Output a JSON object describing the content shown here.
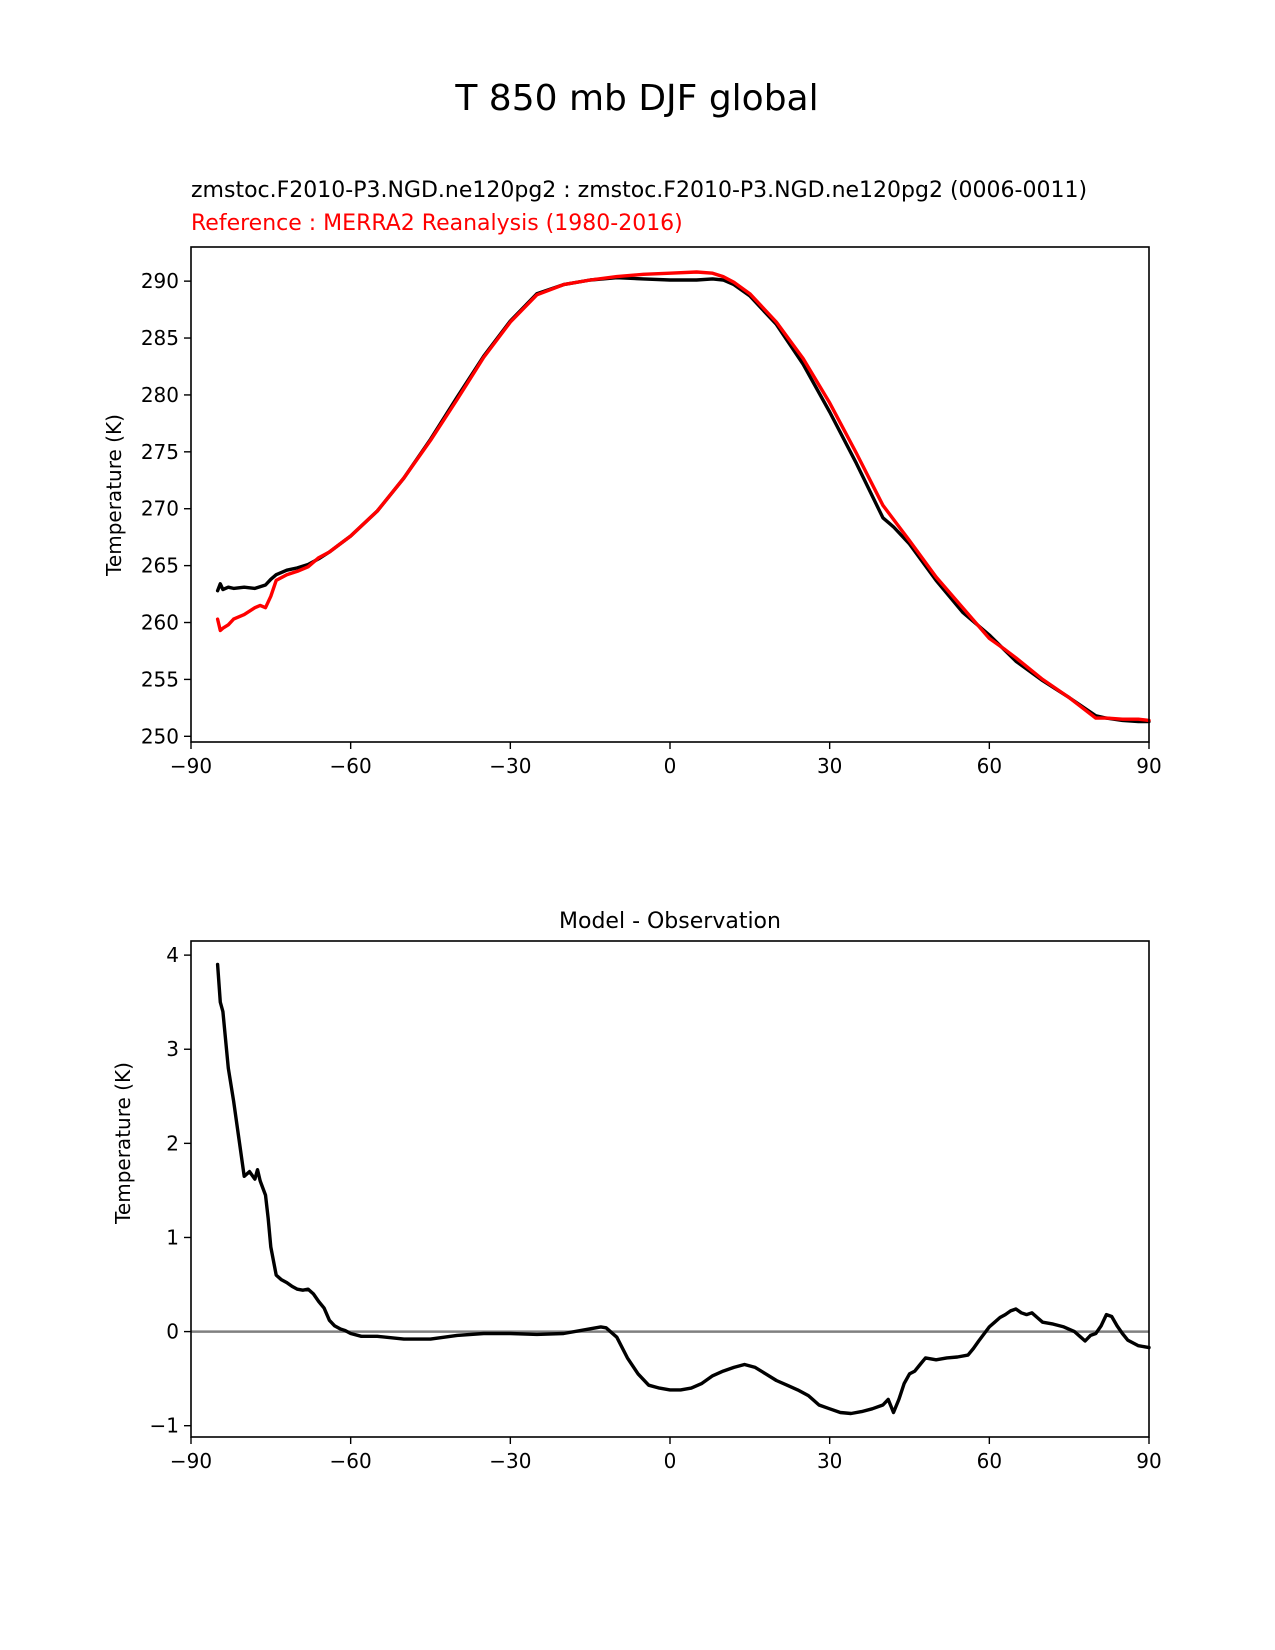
{
  "figure_title": "T 850 mb DJF global",
  "colors": {
    "model": "#000000",
    "reference": "#ff0000",
    "zero_line": "#808080"
  },
  "chart_data": [
    {
      "type": "line",
      "subtitle_model": "zmstoc.F2010-P3.NGD.ne120pg2 : zmstoc.F2010-P3.NGD.ne120pg2 (0006-0011)",
      "subtitle_reference": "Reference : MERRA2 Reanalysis (1980-2016)",
      "ylabel": "Temperature (K)",
      "xlabel": "",
      "xlim": [
        -90,
        90
      ],
      "ylim": [
        249.5,
        293
      ],
      "xticks": [
        -90,
        -60,
        -30,
        0,
        30,
        60,
        90
      ],
      "xtick_labels": [
        "−90",
        "−60",
        "−30",
        "0",
        "30",
        "60",
        "90"
      ],
      "yticks": [
        250,
        255,
        260,
        265,
        270,
        275,
        280,
        285,
        290
      ],
      "ytick_labels": [
        "250",
        "255",
        "260",
        "265",
        "270",
        "275",
        "280",
        "285",
        "290"
      ],
      "series": [
        {
          "name": "model",
          "x": [
            -85,
            -84.5,
            -84,
            -83,
            -82,
            -80,
            -78,
            -76,
            -75,
            -74,
            -72,
            -70,
            -68,
            -66,
            -64,
            -62,
            -60,
            -55,
            -50,
            -45,
            -40,
            -35,
            -30,
            -25,
            -20,
            -15,
            -10,
            -5,
            0,
            5,
            8,
            10,
            12,
            15,
            20,
            25,
            30,
            35,
            40,
            42,
            45,
            50,
            55,
            60,
            65,
            70,
            75,
            80,
            82,
            85,
            88,
            90
          ],
          "y": [
            262.8,
            263.4,
            262.9,
            263.1,
            263.0,
            263.1,
            263.0,
            263.3,
            263.8,
            264.2,
            264.6,
            264.8,
            265.1,
            265.6,
            266.2,
            266.9,
            267.6,
            269.8,
            272.7,
            276.1,
            279.8,
            283.4,
            286.5,
            288.9,
            289.7,
            290.1,
            290.3,
            290.2,
            290.1,
            290.1,
            290.2,
            290.1,
            289.7,
            288.7,
            286.2,
            282.7,
            278.5,
            274.0,
            269.2,
            268.4,
            266.9,
            263.7,
            260.9,
            258.9,
            256.6,
            254.9,
            253.4,
            251.8,
            251.6,
            251.4,
            251.3,
            251.3
          ]
        },
        {
          "name": "reference",
          "x": [
            -85,
            -84.5,
            -84,
            -83,
            -82,
            -80,
            -78,
            -77,
            -76,
            -75,
            -74,
            -72,
            -70,
            -68,
            -66,
            -64,
            -62,
            -60,
            -55,
            -50,
            -45,
            -40,
            -35,
            -30,
            -25,
            -20,
            -15,
            -10,
            -5,
            0,
            5,
            8,
            10,
            12,
            15,
            20,
            25,
            30,
            35,
            40,
            45,
            50,
            55,
            60,
            63,
            65,
            70,
            75,
            80,
            82,
            85,
            88,
            90
          ],
          "y": [
            260.3,
            259.3,
            259.5,
            259.8,
            260.3,
            260.7,
            261.3,
            261.5,
            261.3,
            262.3,
            263.7,
            264.2,
            264.5,
            264.9,
            265.7,
            266.2,
            266.9,
            267.6,
            269.8,
            272.7,
            276.0,
            279.6,
            283.3,
            286.4,
            288.8,
            289.7,
            290.1,
            290.4,
            290.6,
            290.7,
            290.8,
            290.7,
            290.4,
            289.9,
            288.9,
            286.4,
            283.2,
            279.3,
            274.9,
            270.3,
            267.2,
            264.0,
            261.3,
            258.6,
            257.6,
            256.9,
            255.0,
            253.4,
            251.6,
            251.6,
            251.5,
            251.5,
            251.4
          ]
        }
      ]
    },
    {
      "type": "line",
      "title": "Model - Observation",
      "ylabel": "Temperature (K)",
      "xlabel": "",
      "xlim": [
        -90,
        90
      ],
      "ylim": [
        -1.12,
        4.15
      ],
      "xticks": [
        -90,
        -60,
        -30,
        0,
        30,
        60,
        90
      ],
      "xtick_labels": [
        "−90",
        "−60",
        "−30",
        "0",
        "30",
        "60",
        "90"
      ],
      "yticks": [
        -1,
        0,
        1,
        2,
        3,
        4
      ],
      "ytick_labels": [
        "−1",
        "0",
        "1",
        "2",
        "3",
        "4"
      ],
      "zero_line": 0,
      "series": [
        {
          "name": "difference",
          "x": [
            -85,
            -84.5,
            -84,
            -83,
            -82,
            -81,
            -80,
            -79,
            -78,
            -77.5,
            -77,
            -76,
            -75.5,
            -75,
            -74,
            -73,
            -72,
            -71,
            -70,
            -69,
            -68,
            -67,
            -66,
            -65,
            -64,
            -63,
            -62,
            -61,
            -60,
            -58,
            -55,
            -50,
            -45,
            -40,
            -35,
            -30,
            -25,
            -20,
            -15,
            -13,
            -12,
            -10,
            -8,
            -6,
            -4,
            -2,
            0,
            2,
            4,
            6,
            8,
            10,
            12,
            14,
            16,
            18,
            20,
            22,
            24,
            26,
            28,
            30,
            32,
            34,
            36,
            38,
            40,
            41,
            42,
            43,
            44,
            45,
            46,
            47,
            48,
            50,
            52,
            54,
            56,
            57,
            58,
            60,
            61,
            62,
            63,
            64,
            65,
            66,
            67,
            68,
            69,
            70,
            72,
            74,
            76,
            77,
            78,
            79,
            80,
            81,
            82,
            83,
            84,
            85,
            86,
            88,
            90
          ],
          "y": [
            3.9,
            3.5,
            3.4,
            2.8,
            2.45,
            2.05,
            1.65,
            1.7,
            1.62,
            1.72,
            1.6,
            1.45,
            1.2,
            0.9,
            0.6,
            0.55,
            0.52,
            0.48,
            0.45,
            0.44,
            0.45,
            0.4,
            0.32,
            0.25,
            0.12,
            0.06,
            0.03,
            0.01,
            -0.02,
            -0.05,
            -0.05,
            -0.08,
            -0.08,
            -0.04,
            -0.02,
            -0.02,
            -0.03,
            -0.02,
            0.03,
            0.05,
            0.04,
            -0.06,
            -0.28,
            -0.45,
            -0.57,
            -0.6,
            -0.62,
            -0.62,
            -0.6,
            -0.55,
            -0.47,
            -0.42,
            -0.38,
            -0.35,
            -0.38,
            -0.45,
            -0.52,
            -0.57,
            -0.62,
            -0.68,
            -0.78,
            -0.82,
            -0.86,
            -0.87,
            -0.85,
            -0.82,
            -0.78,
            -0.72,
            -0.86,
            -0.72,
            -0.55,
            -0.45,
            -0.42,
            -0.35,
            -0.28,
            -0.3,
            -0.28,
            -0.27,
            -0.25,
            -0.18,
            -0.1,
            0.05,
            0.1,
            0.15,
            0.18,
            0.22,
            0.24,
            0.2,
            0.18,
            0.2,
            0.15,
            0.1,
            0.08,
            0.05,
            0.0,
            -0.05,
            -0.1,
            -0.04,
            -0.02,
            0.06,
            0.18,
            0.16,
            0.06,
            -0.02,
            -0.09,
            -0.15,
            -0.17
          ]
        }
      ]
    }
  ]
}
